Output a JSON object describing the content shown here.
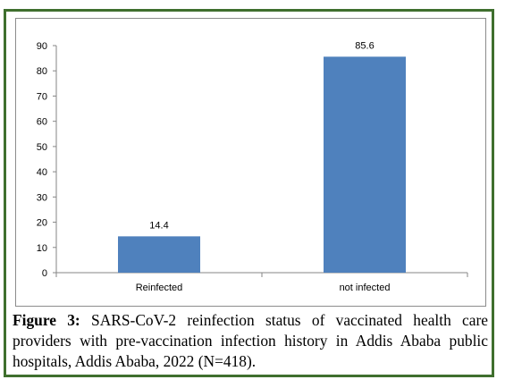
{
  "chart_data": {
    "type": "bar",
    "categories": [
      "Reinfected",
      "not infected"
    ],
    "values": [
      14.4,
      85.6
    ],
    "data_labels": [
      "14.4",
      "85.6"
    ],
    "ylim": [
      0,
      90
    ],
    "yticks": [
      0,
      10,
      20,
      30,
      40,
      50,
      60,
      70,
      80,
      90
    ],
    "bar_color": "#4f81bd",
    "grid": false,
    "legend": "none"
  },
  "caption": {
    "label": "Figure 3:",
    "text": "SARS-CoV-2 reinfection status of vaccinated health care providers with pre-vaccination infection history in Addis Ababa public hospitals, Addis Ababa, 2022 (N=418)."
  },
  "colors": {
    "frame": "#3f6f2e",
    "axis": "#868686"
  }
}
